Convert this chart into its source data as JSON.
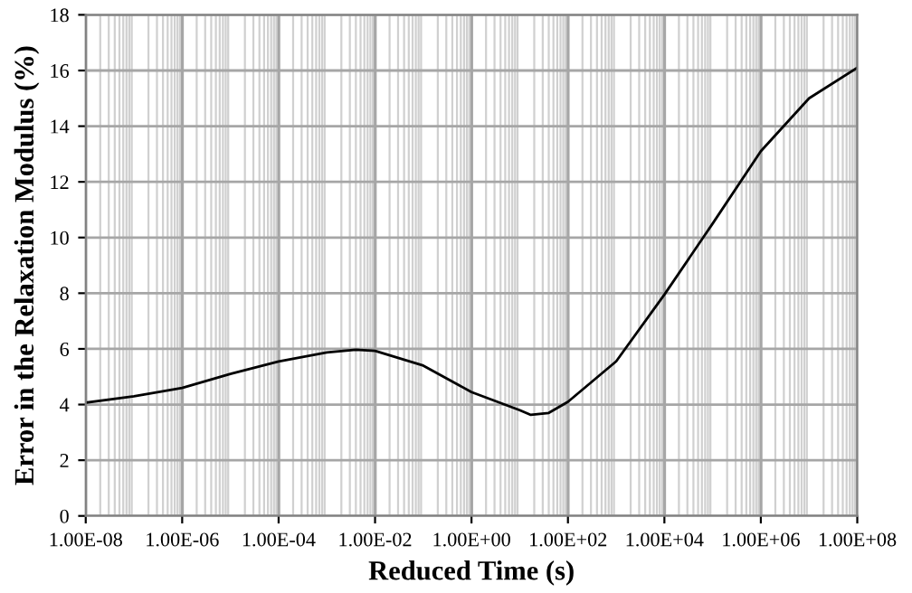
{
  "chart_data": {
    "type": "line",
    "xlabel": "Reduced Time (s)",
    "ylabel": "Error in the Relaxation Modulus (%)",
    "log": "x",
    "x": [
      1e-08,
      1e-07,
      1e-06,
      1e-05,
      0.0001,
      0.001,
      0.004,
      0.01,
      0.1,
      1,
      10,
      17,
      40,
      100,
      1000,
      10000,
      100000,
      1000000,
      10000000,
      100000000
    ],
    "series": [
      {
        "color": "#000000",
        "values": [
          4.07,
          4.3,
          4.6,
          5.1,
          5.55,
          5.87,
          5.97,
          5.93,
          5.4,
          4.45,
          3.8,
          3.63,
          3.7,
          4.1,
          5.55,
          7.95,
          10.5,
          13.1,
          15.0,
          16.1
        ]
      }
    ],
    "xlim": [
      1e-08,
      100000000.0
    ],
    "xticks": [
      {
        "value": 1e-08,
        "label": "1.00E-08"
      },
      {
        "value": 1e-06,
        "label": "1.00E-06"
      },
      {
        "value": 0.0001,
        "label": "1.00E-04"
      },
      {
        "value": 0.01,
        "label": "1.00E-02"
      },
      {
        "value": 1,
        "label": "1.00E+00"
      },
      {
        "value": 100,
        "label": "1.00E+02"
      },
      {
        "value": 10000,
        "label": "1.00E+04"
      },
      {
        "value": 1000000,
        "label": "1.00E+06"
      },
      {
        "value": 100000000,
        "label": "1.00E+08"
      }
    ],
    "ylim": [
      0,
      18
    ],
    "yticks": [
      0,
      2,
      4,
      6,
      8,
      10,
      12,
      14,
      16,
      18
    ],
    "grid": true,
    "marker": "none",
    "line_style": "solid",
    "legend": false
  }
}
